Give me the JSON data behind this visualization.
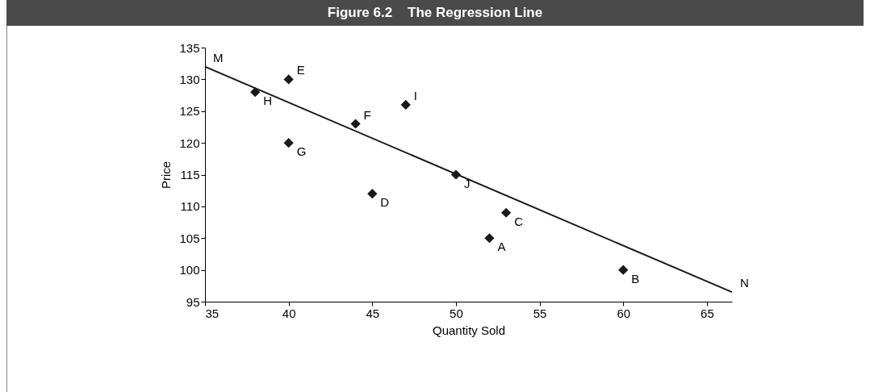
{
  "chart_data": {
    "type": "scatter",
    "title": "Figure 6.2    The Regression Line",
    "xlabel": "Quantity Sold",
    "ylabel": "Price",
    "x": [
      52,
      60,
      53,
      45,
      40,
      44,
      40,
      38,
      47,
      50
    ],
    "series": [
      {
        "type": "scatter",
        "color": "#1a1a1a",
        "marker": "diamond",
        "values": [
          105,
          100,
          109,
          112,
          130,
          123,
          120,
          128,
          126,
          115
        ]
      },
      {
        "type": "line",
        "color": "#1a1a1a",
        "x": [
          35,
          66.5
        ],
        "values": [
          132,
          96.5
        ]
      }
    ],
    "xlim": [
      35,
      66.5
    ],
    "ylim": [
      95,
      135
    ],
    "xticks": [
      35,
      40,
      45,
      50,
      55,
      60,
      65
    ],
    "yticks": [
      95,
      100,
      105,
      110,
      115,
      120,
      125,
      130,
      135
    ],
    "grid": false,
    "line_style": "solid",
    "annotations": [
      {
        "text": "A",
        "x": 52,
        "y": 105
      },
      {
        "text": "B",
        "x": 60,
        "y": 100
      },
      {
        "text": "C",
        "x": 53,
        "y": 109
      },
      {
        "text": "D",
        "x": 45,
        "y": 112
      },
      {
        "text": "E",
        "x": 40,
        "y": 130
      },
      {
        "text": "F",
        "x": 44,
        "y": 123
      },
      {
        "text": "G",
        "x": 40,
        "y": 120
      },
      {
        "text": "H",
        "x": 38,
        "y": 128
      },
      {
        "text": "I",
        "x": 47,
        "y": 126
      },
      {
        "text": "J",
        "x": 50,
        "y": 115
      },
      {
        "text": "M",
        "x": 35,
        "y": 132
      },
      {
        "text": "N",
        "x": 66.5,
        "y": 96.5
      }
    ]
  }
}
